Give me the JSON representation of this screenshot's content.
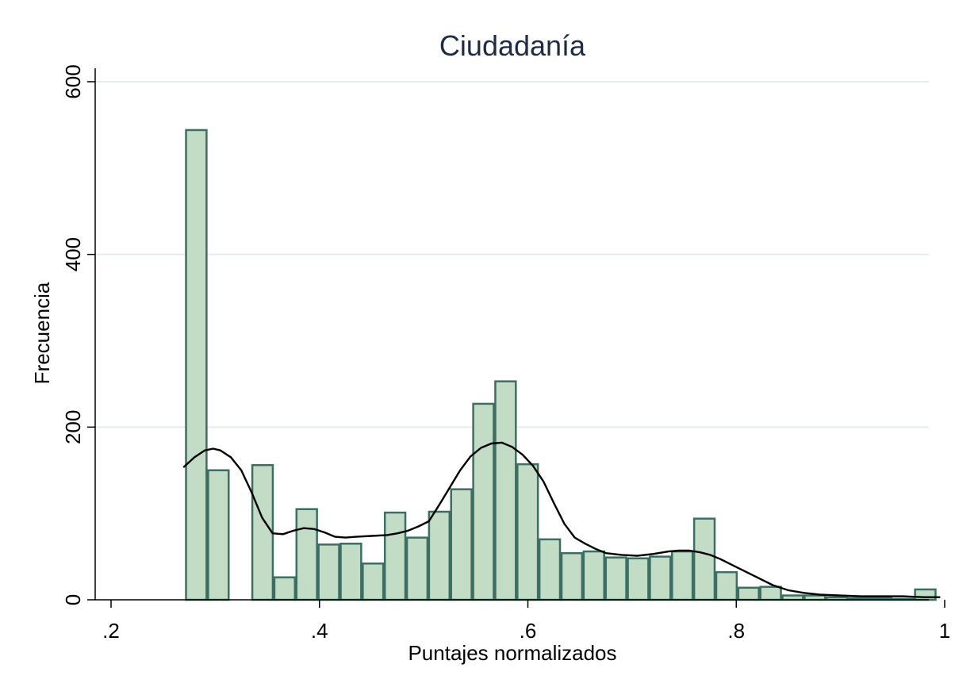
{
  "chart_data": {
    "type": "bar",
    "title": "Ciudadanía",
    "xlabel": "Puntajes normalizados",
    "ylabel": "Frecuencia",
    "xlim": [
      0.2,
      1.0
    ],
    "ylim": [
      0,
      600
    ],
    "x_ticks": [
      {
        "value": 0.2,
        "label": ".2"
      },
      {
        "value": 0.4,
        "label": ".4"
      },
      {
        "value": 0.6,
        "label": ".6"
      },
      {
        "value": 0.8,
        "label": ".8"
      },
      {
        "value": 1.0,
        "label": "1"
      }
    ],
    "y_ticks": [
      {
        "value": 0,
        "label": "0"
      },
      {
        "value": 200,
        "label": "200"
      },
      {
        "value": 400,
        "label": "400"
      },
      {
        "value": 600,
        "label": "600"
      }
    ],
    "grid": true,
    "colors": {
      "bar_fill": "#c3dcc5",
      "bar_stroke": "#3c6e64",
      "density": "#000000",
      "grid": "#e4ecea",
      "title": "#1f2a44"
    },
    "bins": [
      {
        "x0": 0.2712,
        "x1": 0.2924,
        "y": 544
      },
      {
        "x0": 0.2924,
        "x1": 0.3136,
        "y": 150
      },
      {
        "x0": 0.3136,
        "x1": 0.3348,
        "y": 0
      },
      {
        "x0": 0.3348,
        "x1": 0.356,
        "y": 156
      },
      {
        "x0": 0.356,
        "x1": 0.3772,
        "y": 26
      },
      {
        "x0": 0.3772,
        "x1": 0.3984,
        "y": 105
      },
      {
        "x0": 0.3984,
        "x1": 0.4196,
        "y": 64
      },
      {
        "x0": 0.4196,
        "x1": 0.4408,
        "y": 65
      },
      {
        "x0": 0.4408,
        "x1": 0.462,
        "y": 42
      },
      {
        "x0": 0.462,
        "x1": 0.4832,
        "y": 101
      },
      {
        "x0": 0.4832,
        "x1": 0.5044,
        "y": 72
      },
      {
        "x0": 0.5044,
        "x1": 0.5256,
        "y": 102
      },
      {
        "x0": 0.5256,
        "x1": 0.5468,
        "y": 128
      },
      {
        "x0": 0.5468,
        "x1": 0.568,
        "y": 227
      },
      {
        "x0": 0.568,
        "x1": 0.5892,
        "y": 253
      },
      {
        "x0": 0.5892,
        "x1": 0.6104,
        "y": 157
      },
      {
        "x0": 0.6104,
        "x1": 0.6316,
        "y": 70
      },
      {
        "x0": 0.6316,
        "x1": 0.6528,
        "y": 54
      },
      {
        "x0": 0.6528,
        "x1": 0.674,
        "y": 56
      },
      {
        "x0": 0.674,
        "x1": 0.6952,
        "y": 49
      },
      {
        "x0": 0.6952,
        "x1": 0.7164,
        "y": 48
      },
      {
        "x0": 0.7164,
        "x1": 0.7376,
        "y": 50
      },
      {
        "x0": 0.7376,
        "x1": 0.7588,
        "y": 56
      },
      {
        "x0": 0.7588,
        "x1": 0.78,
        "y": 94
      },
      {
        "x0": 0.78,
        "x1": 0.8012,
        "y": 32
      },
      {
        "x0": 0.8012,
        "x1": 0.8224,
        "y": 14
      },
      {
        "x0": 0.8224,
        "x1": 0.8436,
        "y": 15
      },
      {
        "x0": 0.8436,
        "x1": 0.8648,
        "y": 5
      },
      {
        "x0": 0.8648,
        "x1": 0.886,
        "y": 5
      },
      {
        "x0": 0.886,
        "x1": 0.9072,
        "y": 3
      },
      {
        "x0": 0.9072,
        "x1": 0.9284,
        "y": 2
      },
      {
        "x0": 0.9284,
        "x1": 0.9496,
        "y": 2
      },
      {
        "x0": 0.9496,
        "x1": 0.9708,
        "y": 1
      },
      {
        "x0": 0.9708,
        "x1": 0.992,
        "y": 12
      }
    ],
    "density": [
      [
        0.27,
        154
      ],
      [
        0.28,
        165
      ],
      [
        0.29,
        173
      ],
      [
        0.298,
        175
      ],
      [
        0.305,
        173
      ],
      [
        0.315,
        165
      ],
      [
        0.325,
        150
      ],
      [
        0.335,
        124
      ],
      [
        0.345,
        95
      ],
      [
        0.355,
        77
      ],
      [
        0.365,
        76
      ],
      [
        0.375,
        80
      ],
      [
        0.385,
        83
      ],
      [
        0.395,
        82
      ],
      [
        0.405,
        78
      ],
      [
        0.415,
        73
      ],
      [
        0.425,
        72
      ],
      [
        0.435,
        73
      ],
      [
        0.45,
        74
      ],
      [
        0.465,
        75
      ],
      [
        0.475,
        77
      ],
      [
        0.485,
        80
      ],
      [
        0.495,
        85
      ],
      [
        0.505,
        91
      ],
      [
        0.515,
        110
      ],
      [
        0.525,
        130
      ],
      [
        0.535,
        150
      ],
      [
        0.545,
        166
      ],
      [
        0.555,
        176
      ],
      [
        0.565,
        181
      ],
      [
        0.575,
        182
      ],
      [
        0.585,
        177
      ],
      [
        0.595,
        168
      ],
      [
        0.605,
        155
      ],
      [
        0.615,
        137
      ],
      [
        0.625,
        112
      ],
      [
        0.635,
        88
      ],
      [
        0.645,
        72
      ],
      [
        0.655,
        65
      ],
      [
        0.665,
        59
      ],
      [
        0.675,
        54
      ],
      [
        0.69,
        52
      ],
      [
        0.705,
        51
      ],
      [
        0.72,
        53
      ],
      [
        0.735,
        56
      ],
      [
        0.745,
        57
      ],
      [
        0.755,
        57
      ],
      [
        0.765,
        55
      ],
      [
        0.775,
        52
      ],
      [
        0.785,
        47
      ],
      [
        0.795,
        41
      ],
      [
        0.805,
        35
      ],
      [
        0.82,
        26
      ],
      [
        0.835,
        17
      ],
      [
        0.85,
        11
      ],
      [
        0.865,
        8
      ],
      [
        0.88,
        6
      ],
      [
        0.9,
        5
      ],
      [
        0.92,
        4
      ],
      [
        0.94,
        4
      ],
      [
        0.96,
        4
      ],
      [
        0.98,
        3
      ],
      [
        0.995,
        3
      ]
    ]
  }
}
